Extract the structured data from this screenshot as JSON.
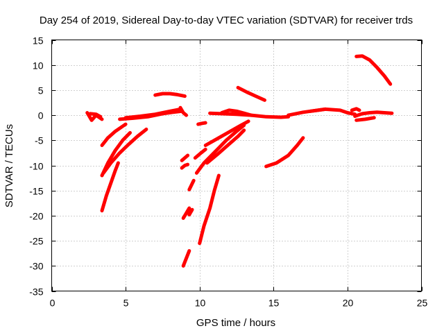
{
  "chart_data": {
    "type": "scatter",
    "title": "Day 254 of 2019, Sidereal Day-to-day VTEC variation (SDTVAR) for receiver trds",
    "xlabel": "GPS time / hours",
    "ylabel": "SDTVAR / TECUs",
    "xlim": [
      0,
      25
    ],
    "ylim": [
      -35,
      15
    ],
    "xticks": [
      0,
      5,
      10,
      15,
      20,
      25
    ],
    "yticks": [
      15,
      10,
      5,
      0,
      -5,
      -10,
      -15,
      -20,
      -25,
      -30,
      -35
    ],
    "grid": true,
    "legend": false,
    "color": "#ff0000",
    "series": [
      {
        "x": [
          2.4,
          2.7,
          3.0,
          3.4
        ],
        "y": [
          0.5,
          -1.0,
          0.0,
          -0.8
        ]
      },
      {
        "x": [
          2.6,
          3.0,
          3.3
        ],
        "y": [
          0.3,
          0.2,
          -0.3
        ]
      },
      {
        "x": [
          3.4,
          3.8,
          4.3,
          4.8,
          5.0
        ],
        "y": [
          -6.0,
          -4.5,
          -3.2,
          -2.2,
          -1.8
        ]
      },
      {
        "x": [
          3.4,
          3.8,
          4.3,
          4.8,
          5.3
        ],
        "y": [
          -12.0,
          -9.5,
          -7.0,
          -5.0,
          -3.5
        ]
      },
      {
        "x": [
          3.5,
          4.0,
          4.6,
          5.2,
          5.8,
          6.4
        ],
        "y": [
          -11.5,
          -9.5,
          -7.5,
          -5.8,
          -4.2,
          -2.8
        ]
      },
      {
        "x": [
          3.4,
          3.7,
          4.0,
          4.3,
          4.5
        ],
        "y": [
          -19.0,
          -16.0,
          -13.5,
          -11.0,
          -9.5
        ]
      },
      {
        "x": [
          4.6,
          5.5,
          6.5,
          7.5,
          8.2,
          8.8
        ],
        "y": [
          -0.8,
          -0.6,
          -0.3,
          0.3,
          0.6,
          0.8
        ]
      },
      {
        "x": [
          5.0,
          6.0,
          7.0,
          8.0,
          8.7
        ],
        "y": [
          -0.5,
          -0.2,
          0.2,
          0.8,
          1.2
        ]
      },
      {
        "x": [
          7.0,
          7.5,
          8.0,
          8.5,
          9.0
        ],
        "y": [
          4.0,
          4.3,
          4.3,
          4.1,
          3.8
        ]
      },
      {
        "x": [
          8.7,
          8.9,
          9.1
        ],
        "y": [
          1.5,
          0.5,
          0.0
        ]
      },
      {
        "x": [
          8.8,
          9.0,
          9.2
        ],
        "y": [
          -9.0,
          -8.5,
          -8.0
        ]
      },
      {
        "x": [
          8.8,
          9.0,
          9.2
        ],
        "y": [
          -10.5,
          -10.0,
          -9.8
        ]
      },
      {
        "x": [
          8.9,
          9.1,
          9.3
        ],
        "y": [
          -20.5,
          -19.5,
          -18.5
        ]
      },
      {
        "x": [
          9.3,
          9.5
        ],
        "y": [
          -19.8,
          -18.8
        ]
      },
      {
        "x": [
          8.9,
          9.1,
          9.3
        ],
        "y": [
          -30.0,
          -28.5,
          -27.0
        ]
      },
      {
        "x": [
          9.3,
          9.6
        ],
        "y": [
          -14.8,
          -13.0
        ]
      },
      {
        "x": [
          9.7,
          10.1,
          10.4
        ],
        "y": [
          -8.5,
          -7.5,
          -6.8
        ]
      },
      {
        "x": [
          9.9,
          10.2,
          10.4
        ],
        "y": [
          -1.8,
          -1.6,
          -1.5
        ]
      },
      {
        "x": [
          9.8,
          10.3,
          10.8,
          11.3,
          11.8,
          12.5,
          13.0
        ],
        "y": [
          -11.5,
          -9.5,
          -8.0,
          -6.5,
          -5.0,
          -3.2,
          -2.0
        ]
      },
      {
        "x": [
          10.4,
          11.0,
          11.6,
          12.2,
          12.8,
          13.3
        ],
        "y": [
          -6.0,
          -5.0,
          -4.0,
          -3.0,
          -2.0,
          -1.2
        ]
      },
      {
        "x": [
          10.5,
          11.2,
          11.9,
          12.6,
          13.0
        ],
        "y": [
          -9.5,
          -7.8,
          -6.0,
          -4.2,
          -3.0
        ]
      },
      {
        "x": [
          10.0,
          10.3,
          10.7,
          11.0,
          11.3
        ],
        "y": [
          -25.5,
          -22.0,
          -18.5,
          -15.0,
          -12.0
        ]
      },
      {
        "x": [
          10.7,
          11.5,
          12.5,
          13.5,
          14.5,
          15.5,
          16.0
        ],
        "y": [
          0.4,
          0.3,
          0.2,
          0.0,
          -0.3,
          -0.4,
          -0.3
        ]
      },
      {
        "x": [
          11.5,
          12.0,
          12.5,
          13.0,
          13.5
        ],
        "y": [
          0.5,
          1.0,
          0.8,
          0.4,
          0.0
        ]
      },
      {
        "x": [
          12.6,
          13.2,
          13.8,
          14.4
        ],
        "y": [
          5.5,
          4.6,
          3.8,
          3.0
        ]
      },
      {
        "x": [
          16.0,
          16.5,
          17.0,
          17.5,
          18.0,
          18.5
        ],
        "y": [
          0.0,
          0.3,
          0.6,
          0.8,
          1.0,
          1.2
        ]
      },
      {
        "x": [
          14.5,
          15.2,
          16.0,
          16.6,
          17.0
        ],
        "y": [
          -10.2,
          -9.5,
          -8.0,
          -6.0,
          -4.5
        ]
      },
      {
        "x": [
          17.5,
          18.5,
          19.5,
          20.0,
          20.5
        ],
        "y": [
          0.8,
          1.2,
          1.0,
          0.5,
          0.2
        ]
      },
      {
        "x": [
          20.3,
          20.6,
          20.8
        ],
        "y": [
          1.0,
          1.3,
          1.0
        ]
      },
      {
        "x": [
          20.5,
          21.0,
          21.5,
          22.0,
          22.5,
          23.0
        ],
        "y": [
          -0.2,
          0.3,
          0.5,
          0.6,
          0.5,
          0.4
        ]
      },
      {
        "x": [
          20.6,
          21.2,
          21.8
        ],
        "y": [
          -1.0,
          -0.8,
          -0.5
        ]
      },
      {
        "x": [
          20.6,
          21.0,
          21.5,
          22.0,
          22.5,
          22.9
        ],
        "y": [
          11.7,
          11.8,
          11.0,
          9.5,
          7.8,
          6.2
        ]
      }
    ]
  }
}
